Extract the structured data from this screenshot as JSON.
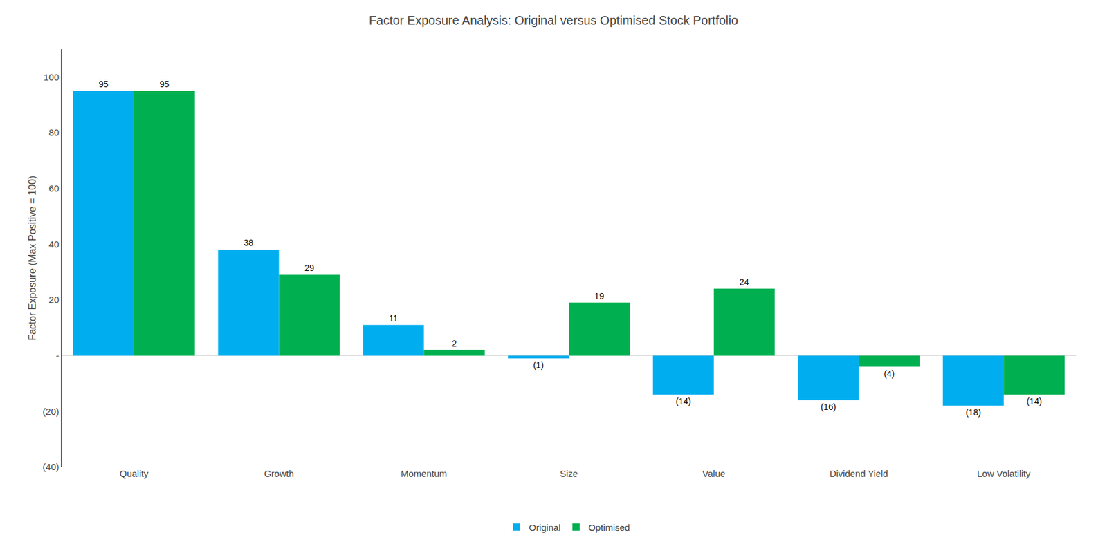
{
  "chart_data": {
    "type": "bar",
    "title": "Factor Exposure Analysis: Original versus Optimised Stock Portfolio",
    "ylabel": "Factor Exposure (Max Positive = 100)",
    "categories": [
      "Quality",
      "Growth",
      "Momentum",
      "Size",
      "Value",
      "Dividend Yield",
      "Low Volatility"
    ],
    "series": [
      {
        "name": "Original",
        "color": "#00AEEF",
        "values": [
          95,
          38,
          11,
          -1,
          -14,
          -16,
          -18
        ],
        "value_labels": [
          "95",
          "38",
          "11",
          "(1)",
          "(14)",
          "(16)",
          "(18)"
        ]
      },
      {
        "name": "Optimised",
        "color": "#00B050",
        "values": [
          95,
          29,
          2,
          19,
          24,
          -4,
          -14
        ],
        "value_labels": [
          "95",
          "29",
          "2",
          "19",
          "24",
          "(4)",
          "(14)"
        ]
      }
    ],
    "ylim": [
      -40,
      110
    ],
    "yticks": [
      {
        "value": -40,
        "label": "(40)"
      },
      {
        "value": -20,
        "label": "(20)"
      },
      {
        "value": 0,
        "label": "-"
      },
      20,
      40,
      60,
      80,
      100
    ],
    "grid": false,
    "legend": "bottom",
    "data_labels": true
  }
}
